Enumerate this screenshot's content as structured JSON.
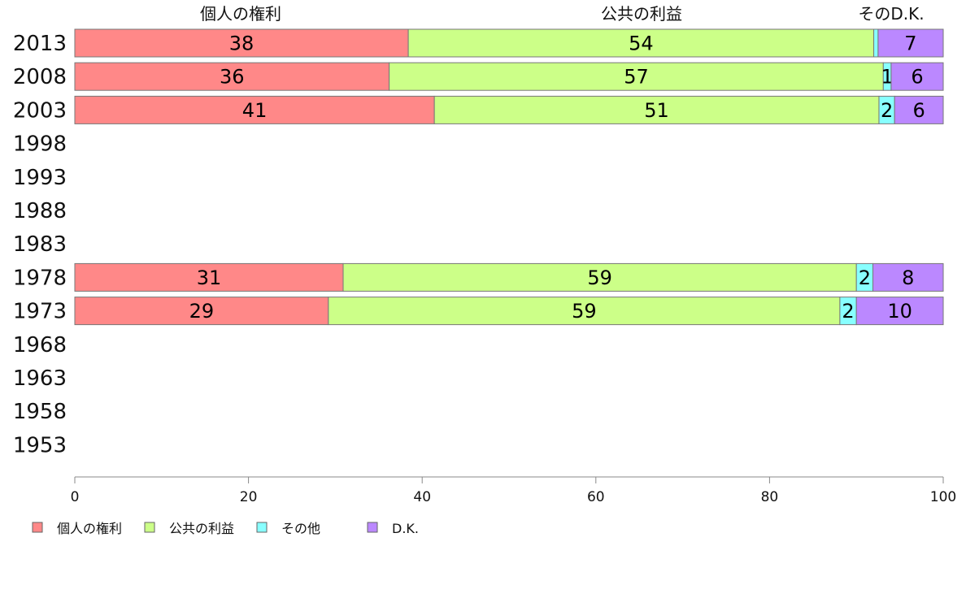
{
  "chart_data": {
    "type": "bar",
    "orientation": "horizontal",
    "stacked": true,
    "column_headers": [
      "個人の権利",
      "公共の利益",
      "そのD.K."
    ],
    "categories": [
      "2013",
      "2008",
      "2003",
      "1998",
      "1993",
      "1988",
      "1983",
      "1978",
      "1973",
      "1968",
      "1963",
      "1958",
      "1953"
    ],
    "series": [
      {
        "name": "個人の権利",
        "color": "#ff8888",
        "values": [
          38.4,
          36.2,
          41.4,
          null,
          null,
          null,
          null,
          30.9,
          29.2,
          null,
          null,
          null,
          null
        ],
        "labels": [
          "38",
          "36",
          "41",
          "",
          "",
          "",
          "",
          "31",
          "29",
          "",
          "",
          "",
          ""
        ]
      },
      {
        "name": "公共の利益",
        "color": "#ccff88",
        "values": [
          53.6,
          56.9,
          51.2,
          null,
          null,
          null,
          null,
          59.1,
          58.9,
          null,
          null,
          null,
          null
        ],
        "labels": [
          "54",
          "57",
          "51",
          "",
          "",
          "",
          "",
          "59",
          "59",
          "",
          "",
          "",
          ""
        ]
      },
      {
        "name": "その他",
        "color": "#88ffff",
        "values": [
          0.5,
          0.9,
          1.8,
          null,
          null,
          null,
          null,
          1.9,
          1.9,
          null,
          null,
          null,
          null
        ],
        "labels": [
          "",
          "1",
          "2",
          "",
          "",
          "",
          "",
          "2",
          "2",
          "",
          "",
          "",
          ""
        ]
      },
      {
        "name": "D.K.",
        "color": "#bb88ff",
        "values": [
          7.5,
          6.0,
          5.6,
          null,
          null,
          null,
          null,
          8.1,
          10.0,
          null,
          null,
          null,
          null
        ],
        "labels": [
          "7",
          "6",
          "6",
          "",
          "",
          "",
          "",
          "8",
          "10",
          "",
          "",
          "",
          ""
        ]
      }
    ],
    "xlim": [
      0,
      100
    ],
    "xticks": [
      "0",
      "20",
      "40",
      "60",
      "80",
      "100"
    ],
    "legend": [
      "個人の権利",
      "公共の利益",
      "その他",
      "D.K."
    ],
    "legend_position": "bottom-left",
    "grid": false
  }
}
